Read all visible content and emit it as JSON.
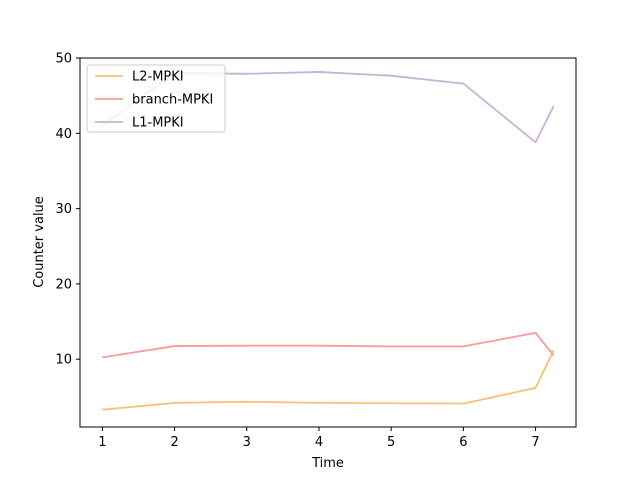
{
  "chart_data": {
    "type": "line",
    "title": "",
    "xlabel": "Time",
    "ylabel": "Counter value",
    "xlim": [
      0.69,
      7.56
    ],
    "ylim": [
      1.0,
      50.0
    ],
    "xticks": [
      1,
      2,
      3,
      4,
      5,
      6,
      7
    ],
    "yticks": [
      10,
      20,
      30,
      40,
      50
    ],
    "grid": false,
    "legend_position": "upper-left",
    "series": [
      {
        "name": "L2-MPKI",
        "color": "#fdbf6f",
        "x": [
          1,
          2,
          3,
          4,
          5,
          6,
          7,
          7.25
        ],
        "y": [
          3.3,
          4.2,
          4.35,
          4.2,
          4.15,
          4.1,
          6.2,
          11.2
        ]
      },
      {
        "name": "branch-MPKI",
        "color": "#fb9a99",
        "x": [
          1,
          2,
          3,
          4,
          5,
          6,
          7,
          7.25
        ],
        "y": [
          10.25,
          11.75,
          11.8,
          11.8,
          11.7,
          11.7,
          13.5,
          10.5
        ]
      },
      {
        "name": "L1-MPKI",
        "color": "#cab2d6",
        "x": [
          1,
          2,
          3,
          4,
          5,
          6,
          7,
          7.25
        ],
        "y": [
          41.0,
          48.0,
          47.9,
          48.15,
          47.65,
          46.6,
          38.8,
          43.6
        ]
      }
    ]
  }
}
